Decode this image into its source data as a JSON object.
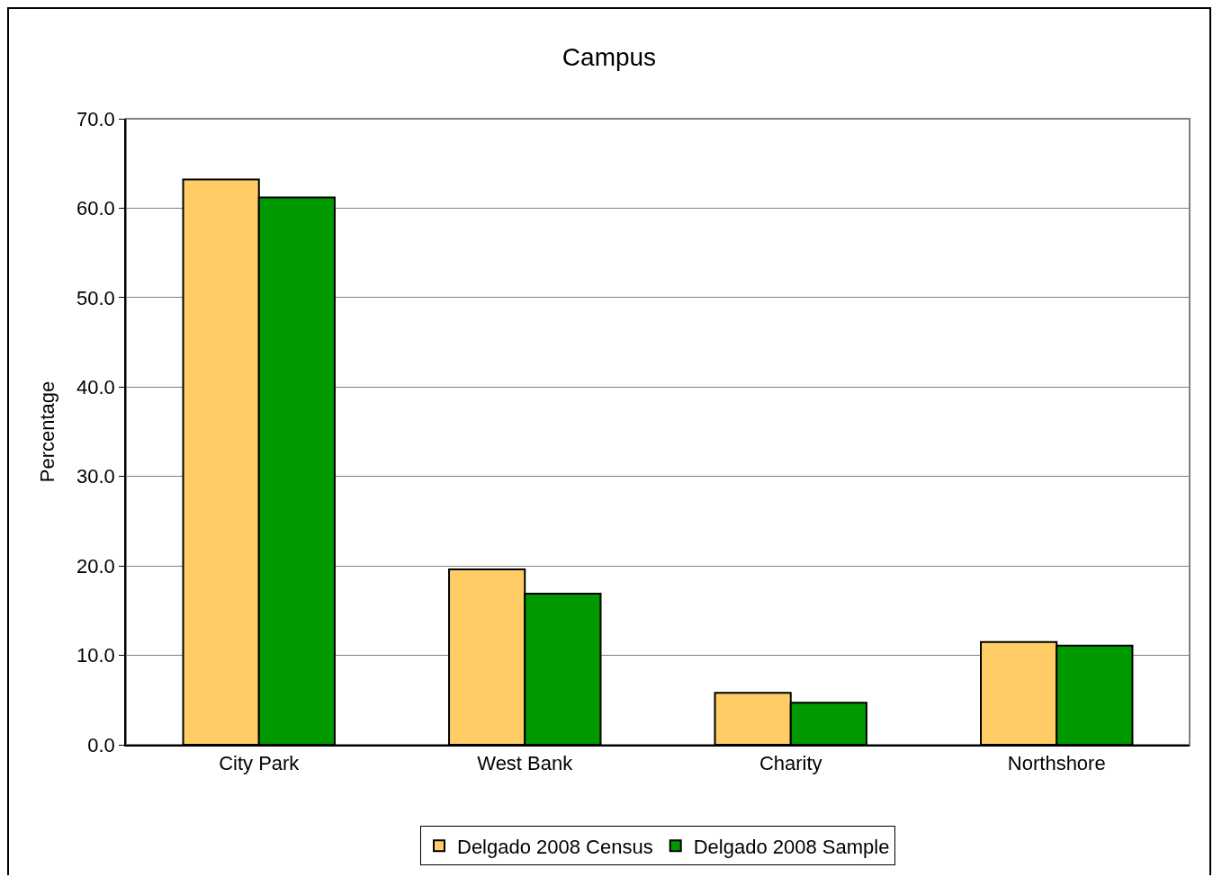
{
  "chart_data": {
    "type": "bar",
    "title": "Campus",
    "ylabel": "Percentage",
    "categories": [
      "City Park",
      "West Bank",
      "Charity",
      "Northshore"
    ],
    "series": [
      {
        "name": "Delgado 2008 Census",
        "color": "#ffcc66",
        "values": [
          63.2,
          19.6,
          5.8,
          11.5
        ]
      },
      {
        "name": "Delgado 2008 Sample",
        "color": "#009900",
        "values": [
          61.2,
          16.9,
          4.7,
          11.1
        ]
      }
    ],
    "ylim": [
      0,
      70
    ],
    "yticks": [
      {
        "value": 0,
        "label": "0.0"
      },
      {
        "value": 10,
        "label": "10.0"
      },
      {
        "value": 20,
        "label": "20.0"
      },
      {
        "value": 30,
        "label": "30.0"
      },
      {
        "value": 40,
        "label": "40.0"
      },
      {
        "value": 50,
        "label": "50.0"
      },
      {
        "value": 60,
        "label": "60.0"
      },
      {
        "value": 70,
        "label": "70.0"
      }
    ],
    "grid": "y",
    "legend": "bottom"
  }
}
